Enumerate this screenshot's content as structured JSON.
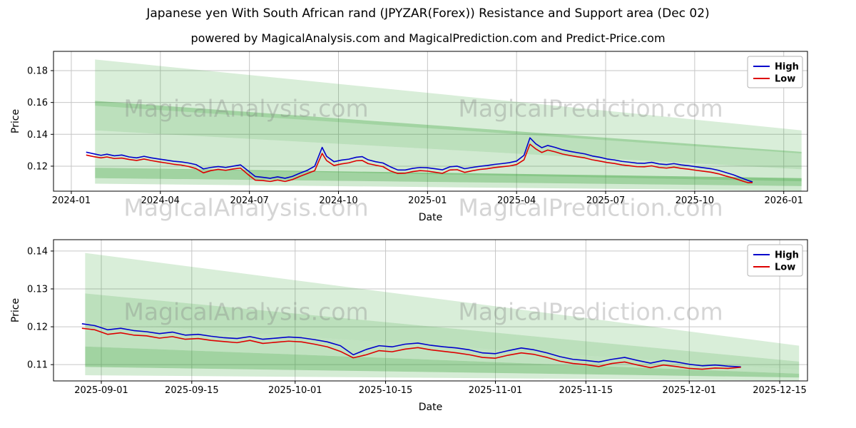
{
  "title": "Japanese yen With South African rand (JPYZAR(Forex)) Resistance and Support area (Dec 02)",
  "subtitle": "powered by MagicalAnalysis.com and MagicalPrediction.com and Predict-Price.com",
  "watermarks": {
    "left": "MagicalAnalysis.com",
    "right": "MagicalPrediction.com"
  },
  "colors": {
    "high_line": "#0000cc",
    "low_line": "#dd0000",
    "band": "#2e9e2e",
    "grid": "#c6c6c6",
    "frame": "#000000",
    "text": "#000000"
  },
  "chart_data": [
    {
      "type": "line",
      "title": "",
      "xlabel": "Date",
      "ylabel": "Price",
      "xlim": [
        -0.6,
        24.8
      ],
      "ylim": [
        0.1043,
        0.1921
      ],
      "grid": true,
      "legend_position": "upper right",
      "xticks": {
        "positions": [
          0,
          3,
          6,
          9,
          12,
          15,
          18,
          21,
          24
        ],
        "labels": [
          "2024-01",
          "2024-04",
          "2024-07",
          "2024-10",
          "2025-01",
          "2025-04",
          "2025-07",
          "2025-10",
          "2026-01"
        ]
      },
      "yticks": {
        "values": [
          0.12,
          0.14,
          0.16,
          0.18
        ],
        "labels": [
          "0.12",
          "0.14",
          "0.16",
          "0.18"
        ]
      },
      "series": [
        {
          "name": "High",
          "color": "#0000cc"
        },
        {
          "name": "Low",
          "color": "#dd0000"
        }
      ],
      "bands": [
        {
          "x": [
            0.8,
            24.6
          ],
          "top": [
            0.187,
            0.1425
          ],
          "bottom": [
            0.158,
            0.128
          ],
          "opacity": 0.18
        },
        {
          "x": [
            0.8,
            24.6
          ],
          "top": [
            0.161,
            0.129
          ],
          "bottom": [
            0.1425,
            0.118
          ],
          "opacity": 0.32
        },
        {
          "x": [
            0.8,
            24.6
          ],
          "top": [
            0.1425,
            0.118
          ],
          "bottom": [
            0.119,
            0.1105
          ],
          "opacity": 0.22
        },
        {
          "x": [
            0.8,
            24.6
          ],
          "top": [
            0.119,
            0.1125
          ],
          "bottom": [
            0.1125,
            0.1075
          ],
          "opacity": 0.45
        },
        {
          "x": [
            0.8,
            24.6
          ],
          "top": [
            0.1125,
            0.1075
          ],
          "bottom": [
            0.109,
            0.1045
          ],
          "opacity": 0.22
        }
      ],
      "points": [
        [
          0.5,
          0.1288,
          0.127
        ],
        [
          0.75,
          0.1278,
          0.126
        ],
        [
          1.0,
          0.1268,
          0.1252
        ],
        [
          1.2,
          0.1275,
          0.1258
        ],
        [
          1.45,
          0.1265,
          0.1248
        ],
        [
          1.7,
          0.127,
          0.1251
        ],
        [
          1.95,
          0.1258,
          0.1242
        ],
        [
          2.2,
          0.1252,
          0.1236
        ],
        [
          2.45,
          0.1262,
          0.1245
        ],
        [
          2.7,
          0.1252,
          0.1235
        ],
        [
          2.95,
          0.1245,
          0.1227
        ],
        [
          3.2,
          0.1238,
          0.122
        ],
        [
          3.45,
          0.1231,
          0.1212
        ],
        [
          3.7,
          0.1227,
          0.1207
        ],
        [
          3.95,
          0.122,
          0.1198
        ],
        [
          4.2,
          0.121,
          0.1185
        ],
        [
          4.45,
          0.1183,
          0.1158
        ],
        [
          4.7,
          0.1192,
          0.1172
        ],
        [
          4.95,
          0.1198,
          0.118
        ],
        [
          5.2,
          0.1192,
          0.1174
        ],
        [
          5.45,
          0.12,
          0.1182
        ],
        [
          5.7,
          0.1208,
          0.1188
        ],
        [
          5.95,
          0.1172,
          0.1148
        ],
        [
          6.2,
          0.1135,
          0.1112
        ],
        [
          6.45,
          0.113,
          0.111
        ],
        [
          6.7,
          0.1124,
          0.1104
        ],
        [
          6.95,
          0.1133,
          0.1113
        ],
        [
          7.2,
          0.1124,
          0.1104
        ],
        [
          7.45,
          0.1136,
          0.1116
        ],
        [
          7.7,
          0.1156,
          0.1136
        ],
        [
          7.95,
          0.1174,
          0.1154
        ],
        [
          8.2,
          0.12,
          0.1172
        ],
        [
          8.45,
          0.1318,
          0.128
        ],
        [
          8.6,
          0.1262,
          0.1235
        ],
        [
          8.85,
          0.1228,
          0.1204
        ],
        [
          9.1,
          0.1238,
          0.1214
        ],
        [
          9.35,
          0.1244,
          0.1221
        ],
        [
          9.6,
          0.1256,
          0.1234
        ],
        [
          9.8,
          0.126,
          0.1236
        ],
        [
          10.0,
          0.124,
          0.1216
        ],
        [
          10.25,
          0.1228,
          0.1206
        ],
        [
          10.5,
          0.122,
          0.1197
        ],
        [
          10.75,
          0.1196,
          0.117
        ],
        [
          11.0,
          0.1176,
          0.1154
        ],
        [
          11.25,
          0.1176,
          0.1156
        ],
        [
          11.5,
          0.1186,
          0.1166
        ],
        [
          11.75,
          0.1192,
          0.1172
        ],
        [
          12.0,
          0.119,
          0.1169
        ],
        [
          12.25,
          0.1184,
          0.1162
        ],
        [
          12.5,
          0.1177,
          0.1155
        ],
        [
          12.75,
          0.1196,
          0.1176
        ],
        [
          13.0,
          0.12,
          0.1178
        ],
        [
          13.25,
          0.1184,
          0.1161
        ],
        [
          13.5,
          0.1192,
          0.1171
        ],
        [
          13.75,
          0.1199,
          0.1179
        ],
        [
          14.0,
          0.1204,
          0.1184
        ],
        [
          14.25,
          0.1211,
          0.1191
        ],
        [
          14.5,
          0.1216,
          0.1196
        ],
        [
          14.75,
          0.1222,
          0.1201
        ],
        [
          15.0,
          0.1232,
          0.121
        ],
        [
          15.25,
          0.1268,
          0.124
        ],
        [
          15.45,
          0.1378,
          0.1338
        ],
        [
          15.65,
          0.134,
          0.1308
        ],
        [
          15.85,
          0.1316,
          0.1286
        ],
        [
          16.05,
          0.133,
          0.1301
        ],
        [
          16.3,
          0.1318,
          0.129
        ],
        [
          16.55,
          0.1303,
          0.1276
        ],
        [
          16.8,
          0.1293,
          0.1267
        ],
        [
          17.05,
          0.1285,
          0.1259
        ],
        [
          17.3,
          0.1277,
          0.1252
        ],
        [
          17.55,
          0.1264,
          0.124
        ],
        [
          17.8,
          0.1256,
          0.1232
        ],
        [
          18.05,
          0.1245,
          0.1223
        ],
        [
          18.3,
          0.1239,
          0.1217
        ],
        [
          18.55,
          0.123,
          0.1208
        ],
        [
          18.8,
          0.1225,
          0.1203
        ],
        [
          19.05,
          0.1219,
          0.1197
        ],
        [
          19.3,
          0.1218,
          0.1196
        ],
        [
          19.55,
          0.1224,
          0.1202
        ],
        [
          19.8,
          0.1214,
          0.1192
        ],
        [
          20.05,
          0.121,
          0.1188
        ],
        [
          20.3,
          0.1216,
          0.1194
        ],
        [
          20.55,
          0.1208,
          0.1186
        ],
        [
          20.8,
          0.1203,
          0.1181
        ],
        [
          21.05,
          0.1196,
          0.1174
        ],
        [
          21.3,
          0.119,
          0.1168
        ],
        [
          21.55,
          0.1184,
          0.1162
        ],
        [
          21.8,
          0.1174,
          0.1152
        ],
        [
          22.05,
          0.116,
          0.1138
        ],
        [
          22.3,
          0.1146,
          0.1126
        ],
        [
          22.55,
          0.1128,
          0.111
        ],
        [
          22.8,
          0.111,
          0.1096
        ],
        [
          22.95,
          0.1101,
          0.1097
        ]
      ]
    },
    {
      "type": "line",
      "title": "",
      "xlabel": "Date",
      "ylabel": "Price",
      "xlim": [
        -0.4,
        116.3
      ],
      "ylim": [
        0.1057,
        0.143
      ],
      "grid": true,
      "legend_position": "upper right",
      "xticks": {
        "positions": [
          7,
          21,
          37,
          51,
          68,
          82,
          98,
          112
        ],
        "labels": [
          "2025-09-01",
          "2025-09-15",
          "2025-10-01",
          "2025-10-15",
          "2025-11-01",
          "2025-11-15",
          "2025-12-01",
          "2025-12-15"
        ]
      },
      "yticks": {
        "values": [
          0.11,
          0.12,
          0.13,
          0.14
        ],
        "labels": [
          "0.11",
          "0.12",
          "0.13",
          "0.14"
        ]
      },
      "series": [
        {
          "name": "High",
          "color": "#0000cc"
        },
        {
          "name": "Low",
          "color": "#dd0000"
        }
      ],
      "bands": [
        {
          "x": [
            4.5,
            115
          ],
          "top": [
            0.1395,
            0.115
          ],
          "bottom": [
            0.1288,
            0.1108
          ],
          "opacity": 0.18
        },
        {
          "x": [
            4.5,
            115
          ],
          "top": [
            0.1288,
            0.1108
          ],
          "bottom": [
            0.1212,
            0.1086
          ],
          "opacity": 0.32
        },
        {
          "x": [
            4.5,
            115
          ],
          "top": [
            0.1212,
            0.1086
          ],
          "bottom": [
            0.1148,
            0.1076
          ],
          "opacity": 0.3
        },
        {
          "x": [
            4.5,
            115
          ],
          "top": [
            0.1148,
            0.1076
          ],
          "bottom": [
            0.1094,
            0.1066
          ],
          "opacity": 0.45
        },
        {
          "x": [
            4.5,
            115
          ],
          "top": [
            0.1094,
            0.1066
          ],
          "bottom": [
            0.1072,
            0.1058
          ],
          "opacity": 0.2
        }
      ],
      "points": [
        [
          4,
          0.1208,
          0.1196
        ],
        [
          6,
          0.1203,
          0.1192
        ],
        [
          8,
          0.1192,
          0.118
        ],
        [
          10,
          0.1196,
          0.1184
        ],
        [
          12,
          0.119,
          0.1178
        ],
        [
          14,
          0.1187,
          0.1176
        ],
        [
          16,
          0.1182,
          0.117
        ],
        [
          18,
          0.1186,
          0.1174
        ],
        [
          20,
          0.1178,
          0.1167
        ],
        [
          22,
          0.118,
          0.1169
        ],
        [
          24,
          0.1175,
          0.1164
        ],
        [
          26,
          0.1171,
          0.1161
        ],
        [
          28,
          0.1169,
          0.1158
        ],
        [
          30,
          0.1174,
          0.1164
        ],
        [
          32,
          0.1167,
          0.1156
        ],
        [
          34,
          0.117,
          0.1159
        ],
        [
          36,
          0.1173,
          0.1162
        ],
        [
          38,
          0.1171,
          0.116
        ],
        [
          40,
          0.1166,
          0.1154
        ],
        [
          42,
          0.116,
          0.1147
        ],
        [
          44,
          0.115,
          0.1135
        ],
        [
          46,
          0.1126,
          0.1118
        ],
        [
          48,
          0.114,
          0.1126
        ],
        [
          50,
          0.115,
          0.1137
        ],
        [
          52,
          0.1147,
          0.1134
        ],
        [
          54,
          0.1154,
          0.1141
        ],
        [
          56,
          0.1157,
          0.1145
        ],
        [
          58,
          0.1151,
          0.1139
        ],
        [
          60,
          0.1147,
          0.1135
        ],
        [
          62,
          0.1144,
          0.1131
        ],
        [
          64,
          0.1139,
          0.1126
        ],
        [
          66,
          0.1131,
          0.1119
        ],
        [
          68,
          0.1129,
          0.1117
        ],
        [
          70,
          0.1137,
          0.1125
        ],
        [
          72,
          0.1144,
          0.1131
        ],
        [
          74,
          0.1139,
          0.1127
        ],
        [
          76,
          0.1131,
          0.1119
        ],
        [
          78,
          0.1121,
          0.1109
        ],
        [
          80,
          0.1114,
          0.1103
        ],
        [
          82,
          0.1111,
          0.11
        ],
        [
          84,
          0.1107,
          0.1095
        ],
        [
          86,
          0.1114,
          0.1103
        ],
        [
          88,
          0.1119,
          0.1107
        ],
        [
          90,
          0.1111,
          0.1099
        ],
        [
          92,
          0.1104,
          0.1092
        ],
        [
          94,
          0.1111,
          0.1099
        ],
        [
          96,
          0.1107,
          0.1095
        ],
        [
          98,
          0.1101,
          0.109
        ],
        [
          100,
          0.1097,
          0.1088
        ],
        [
          102,
          0.1099,
          0.1091
        ],
        [
          104,
          0.1096,
          0.109
        ],
        [
          106,
          0.1094,
          0.1093
        ]
      ]
    }
  ]
}
